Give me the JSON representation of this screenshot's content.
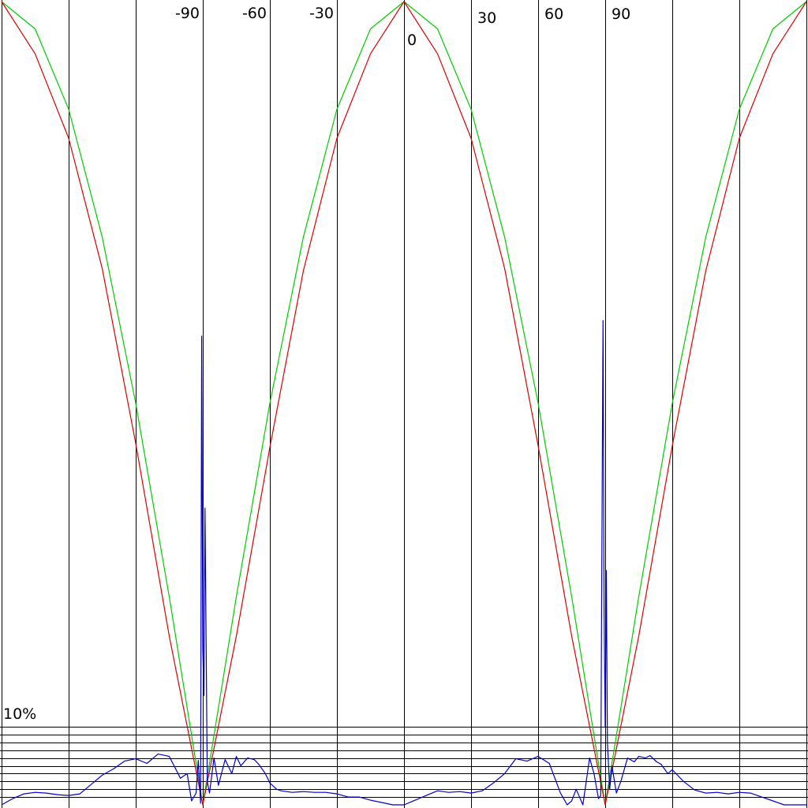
{
  "chart_data": {
    "type": "line",
    "title": "",
    "xlabel": "",
    "ylabel": "",
    "xlim": [
      -180,
      180
    ],
    "ylim": [
      0,
      1
    ],
    "grid": true,
    "x_ticks": [
      -180,
      -150,
      -120,
      -90,
      -60,
      -30,
      0,
      30,
      60,
      90,
      120,
      150,
      180
    ],
    "x_tick_labels": [
      {
        "value": -90,
        "text": "-90"
      },
      {
        "value": -60,
        "text": "-60"
      },
      {
        "value": -30,
        "text": "-30"
      },
      {
        "value": 0,
        "text": "0"
      },
      {
        "value": 30,
        "text": "30"
      },
      {
        "value": 60,
        "text": "60"
      },
      {
        "value": 90,
        "text": "90"
      }
    ],
    "error_axis": {
      "label": "10%",
      "top_value": 10,
      "gridline_values": [
        10,
        9,
        8,
        7,
        6,
        5,
        4,
        3,
        2,
        1
      ],
      "ylim": [
        0,
        10
      ]
    },
    "series": [
      {
        "color": "#00cc00",
        "kind": "reference",
        "x": [
          -180,
          -165,
          -150,
          -135,
          -120,
          -105,
          -90,
          -75,
          -60,
          -45,
          -30,
          -15,
          0,
          15,
          30,
          45,
          60,
          75,
          90,
          105,
          120,
          135,
          150,
          165,
          180
        ],
        "y": [
          1.0,
          0.966,
          0.866,
          0.707,
          0.5,
          0.259,
          0.0,
          0.259,
          0.5,
          0.707,
          0.866,
          0.966,
          1.0,
          0.966,
          0.866,
          0.707,
          0.5,
          0.259,
          0.0,
          0.259,
          0.5,
          0.707,
          0.866,
          0.966,
          1.0
        ]
      },
      {
        "color": "#dd0000",
        "kind": "approximation",
        "x": [
          -180,
          -165,
          -150,
          -135,
          -120,
          -105,
          -90,
          -75,
          -60,
          -45,
          -30,
          -15,
          0,
          15,
          30,
          45,
          60,
          75,
          90,
          105,
          120,
          135,
          150,
          165,
          180
        ],
        "y": [
          1.0,
          0.935,
          0.83,
          0.668,
          0.45,
          0.21,
          0.0,
          0.21,
          0.445,
          0.665,
          0.83,
          0.935,
          1.0,
          0.935,
          0.83,
          0.668,
          0.447,
          0.21,
          0.0,
          0.21,
          0.447,
          0.665,
          0.83,
          0.935,
          1.0
        ]
      },
      {
        "color": "#0000cc",
        "kind": "error_percent",
        "x": [
          -180,
          -175,
          -170,
          -165,
          -160,
          -155,
          -150,
          -145,
          -140,
          -135,
          -130,
          -125,
          -120,
          -115,
          -110,
          -105,
          -100,
          -97,
          -95,
          -93,
          -92,
          -91,
          -90.5,
          -90,
          -89.5,
          -89,
          -88,
          -87,
          -85,
          -83,
          -80,
          -77,
          -75,
          -73,
          -70,
          -67,
          -65,
          -62,
          -60,
          -57,
          -55,
          -50,
          -45,
          -40,
          -35,
          -30,
          -25,
          -20,
          -15,
          -10,
          -5,
          0,
          5,
          10,
          15,
          20,
          25,
          30,
          35,
          40,
          45,
          50,
          55,
          60,
          65,
          70,
          73,
          75,
          77,
          80,
          83,
          85,
          87,
          88,
          89,
          89.5,
          90,
          90.5,
          91,
          92,
          93,
          95,
          97,
          100,
          103,
          105,
          108,
          110,
          113,
          115,
          118,
          120,
          125,
          130,
          135,
          140,
          145,
          150,
          155,
          160,
          165,
          170,
          175,
          180
        ],
        "y": [
          0.0,
          0.8,
          1.4,
          1.6,
          1.5,
          1.3,
          1.2,
          1.4,
          2.6,
          3.8,
          4.6,
          5.6,
          5.9,
          5.3,
          6.5,
          6.2,
          3.4,
          4.0,
          0.5,
          1.5,
          5.7,
          0.2,
          60.0,
          20.0,
          14.0,
          38.0,
          3.0,
          1.5,
          6.0,
          2.5,
          5.8,
          4.0,
          6.2,
          5.0,
          6.0,
          5.8,
          5.2,
          4.0,
          2.8,
          2.0,
          1.8,
          1.6,
          1.7,
          1.6,
          1.6,
          1.4,
          1.0,
          1.0,
          0.6,
          0.3,
          0.0,
          0.0,
          0.6,
          1.2,
          1.8,
          1.6,
          1.7,
          1.5,
          1.8,
          2.8,
          4.0,
          5.9,
          5.6,
          6.2,
          5.3,
          1.5,
          0.0,
          0.5,
          2.0,
          0.0,
          6.0,
          4.0,
          0.8,
          1.2,
          62.0,
          25.0,
          10.0,
          30.0,
          8.0,
          2.0,
          5.0,
          1.5,
          3.0,
          6.0,
          5.5,
          6.2,
          6.0,
          6.3,
          5.5,
          5.2,
          4.0,
          4.5,
          3.0,
          1.9,
          1.5,
          1.6,
          1.4,
          1.6,
          1.5,
          1.0,
          0.5,
          0.0,
          0.0,
          0.0
        ]
      }
    ]
  }
}
